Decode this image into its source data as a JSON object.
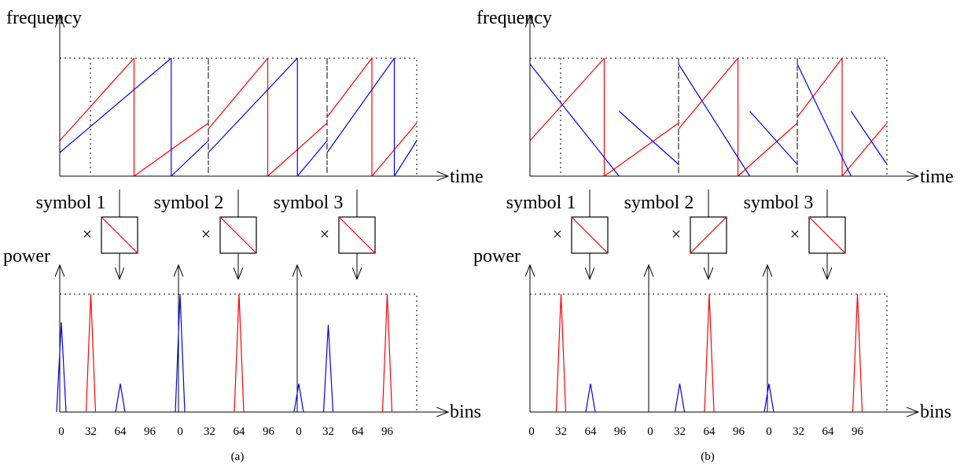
{
  "labels": {
    "frequency": "frequency",
    "time": "time",
    "power": "power",
    "bins": "bins",
    "multiply": "×",
    "symbols": [
      "symbol 1",
      "symbol 2",
      "symbol 3"
    ],
    "bin_ticks": [
      "0",
      "32",
      "64",
      "96"
    ]
  },
  "colors": {
    "red": "#ff0000",
    "blue": "#0000ff",
    "axis": "#000000"
  },
  "panels": [
    {
      "caption": "(a)",
      "dechirp": [
        "down",
        "down",
        "down"
      ],
      "chirps": {
        "red": [
          [
            0.03,
            0.41
          ],
          [
            0.41,
            0.94
          ],
          [
            0.56,
            0.94
          ],
          [
            0.94,
            1.0
          ]
        ],
        "blue": [
          [
            0.42,
            1.0
          ],
          [
            0.0,
            0.41
          ],
          [
            0.41,
            1.0
          ],
          [
            0.0,
            0.58
          ],
          [
            0.58,
            0.94
          ]
        ]
      },
      "peaks": [
        {
          "red": 32,
          "blue": [
            0,
            64
          ],
          "blue_heights": [
            0.76,
            0.24
          ]
        },
        {
          "red": 64,
          "blue": [
            0
          ],
          "blue_heights": [
            1.0
          ]
        },
        {
          "red": 96,
          "blue": [
            0,
            32
          ],
          "blue_heights": [
            0.24,
            0.74
          ]
        }
      ]
    },
    {
      "caption": "(b)",
      "dechirp": [
        "down",
        "up",
        "down"
      ],
      "chirps": {
        "red": [
          [
            0.27,
            0.92
          ],
          [
            0.92,
            1.0
          ],
          [
            0.2,
            1.0
          ],
          [
            0.68,
            0.0
          ]
        ],
        "blue": [
          [
            0.92,
            0.0
          ],
          [
            0.68,
            0.02
          ],
          [
            0.36,
            0.0
          ],
          [
            0.03,
            0.43
          ]
        ]
      },
      "peaks": [
        {
          "red": 32,
          "blue": [
            64
          ],
          "blue_heights": [
            0.24
          ]
        },
        {
          "red": 64,
          "blue": [
            32
          ],
          "blue_heights": [
            0.24
          ]
        },
        {
          "red": 96,
          "blue": [
            0
          ],
          "blue_heights": [
            0.24
          ]
        }
      ]
    }
  ]
}
